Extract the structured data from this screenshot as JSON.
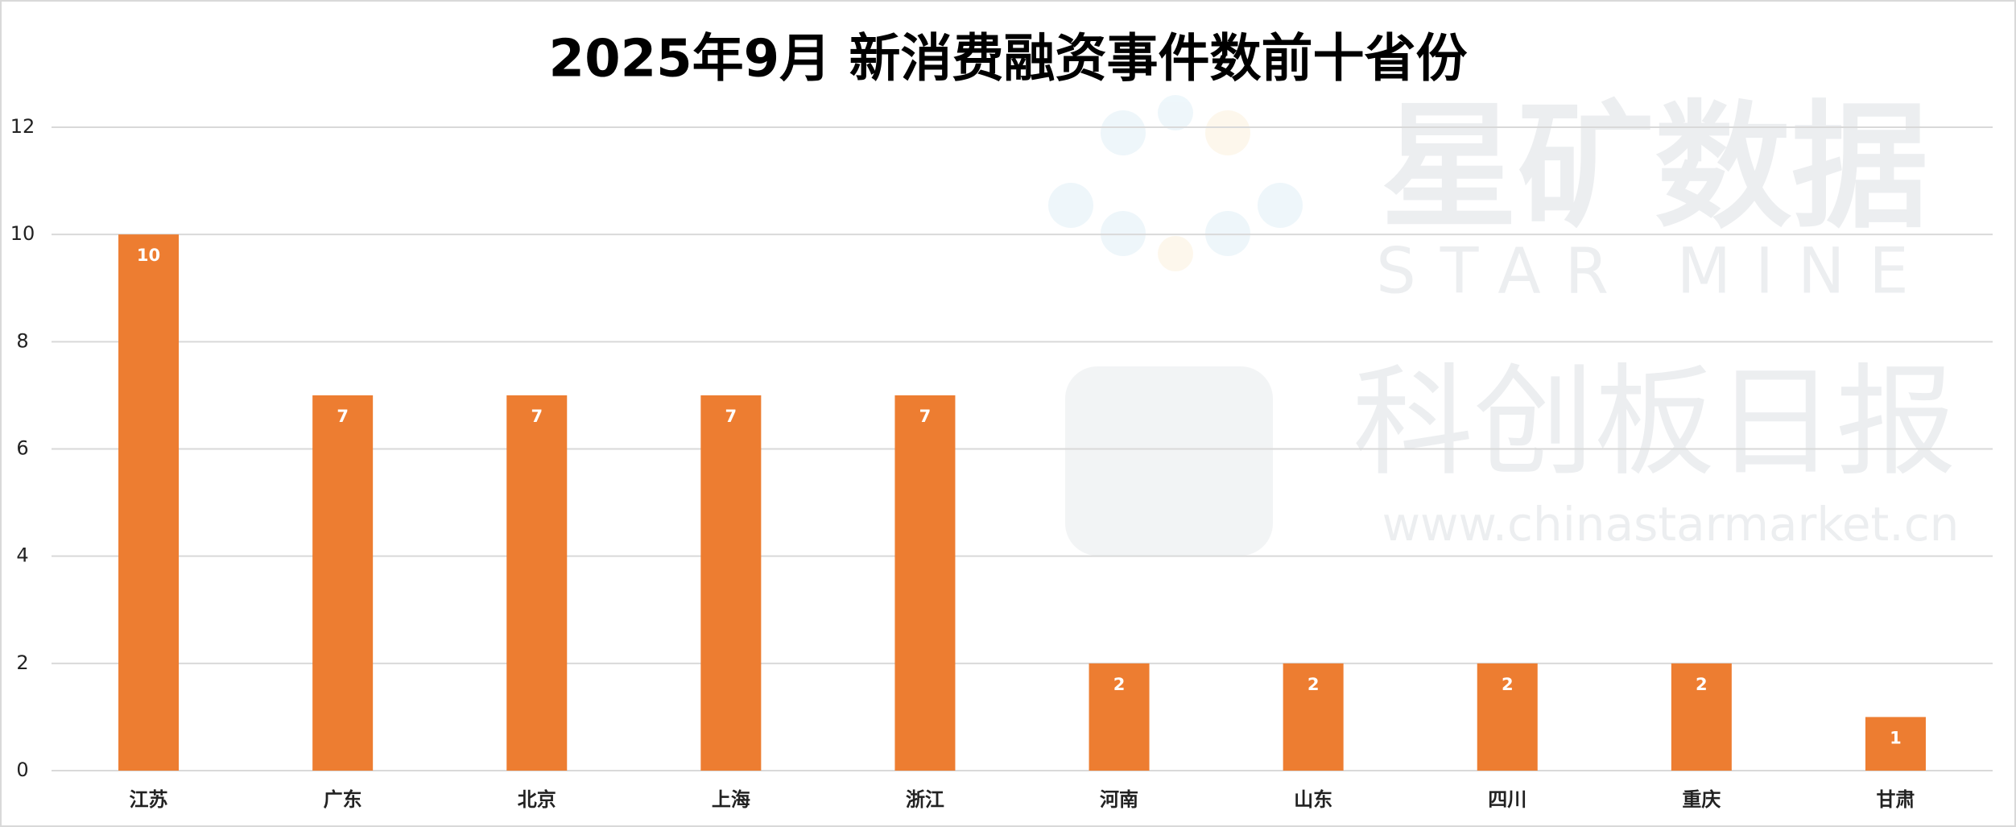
{
  "chart_data": {
    "type": "bar",
    "title": "2025年9月 新消费融资事件数前十省份",
    "categories": [
      "江苏",
      "广东",
      "北京",
      "上海",
      "浙江",
      "河南",
      "山东",
      "四川",
      "重庆",
      "甘肃"
    ],
    "values": [
      10,
      7,
      7,
      7,
      7,
      2,
      2,
      2,
      2,
      1
    ],
    "color": "#ed7d31",
    "ylim": [
      0,
      12
    ],
    "yticks": [
      0,
      2,
      4,
      6,
      8,
      10,
      12
    ],
    "grid": true,
    "watermark": [
      "星矿数据",
      "STAR MINE",
      "科创板日报",
      "www.chinastarmarket.cn"
    ]
  }
}
